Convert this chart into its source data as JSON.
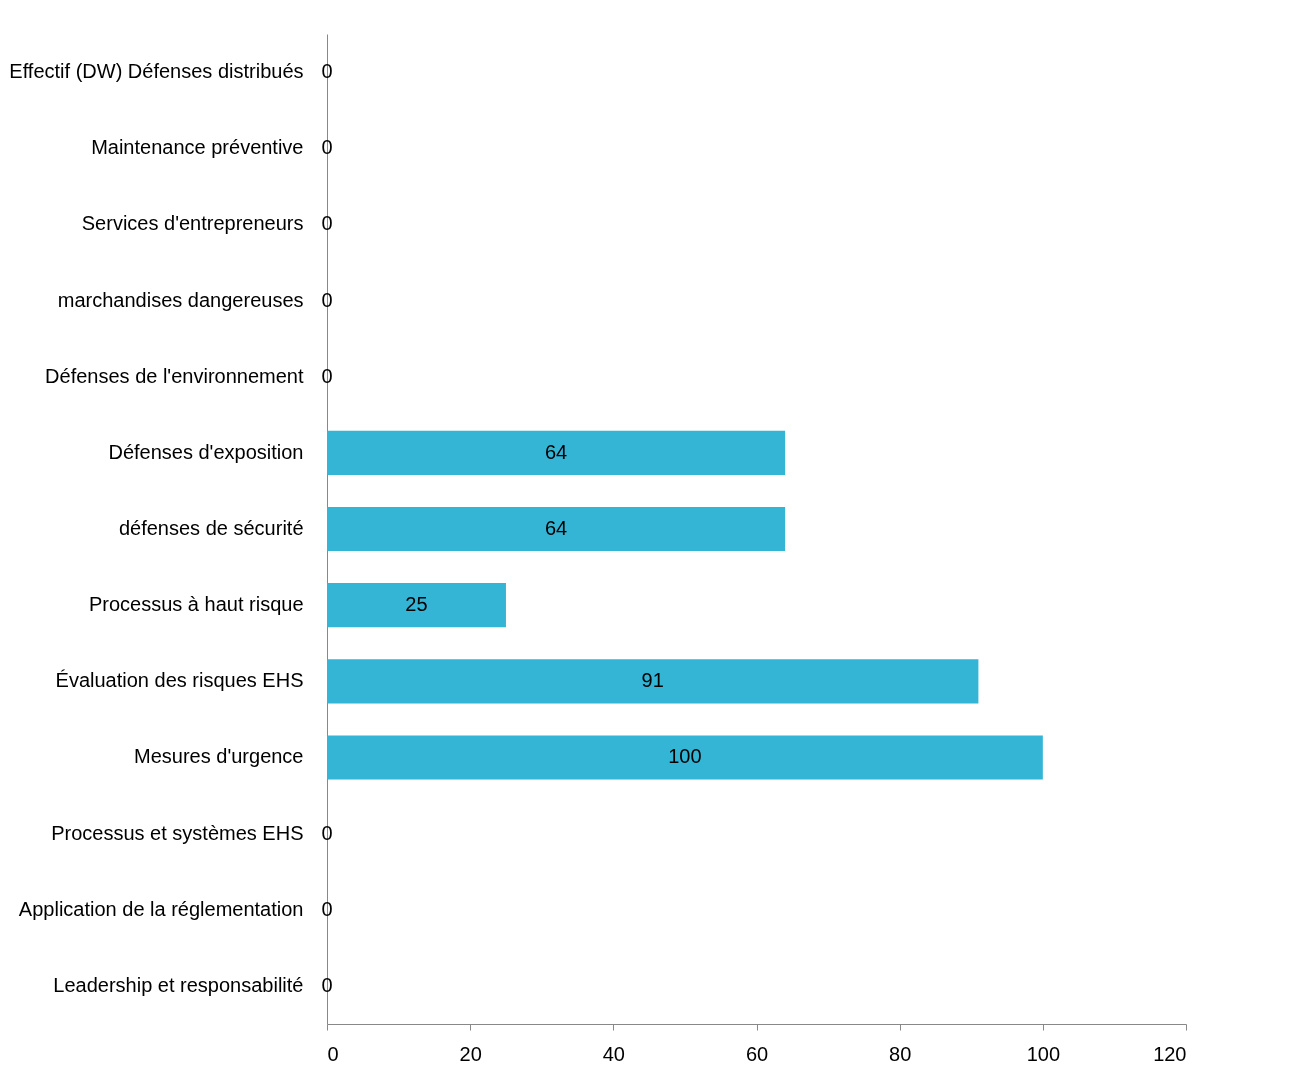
{
  "chart_data": {
    "type": "bar",
    "orientation": "horizontal",
    "categories": [
      "Effectif (DW) Défenses distribués",
      "Maintenance préventive",
      "Services d'entrepreneurs",
      "marchandises dangereuses",
      "Défenses de l'environnement",
      "Défenses d'exposition",
      "défenses de sécurité",
      "Processus à haut risque",
      "Évaluation des risques EHS",
      "Mesures d'urgence",
      "Processus et systèmes EHS",
      "Application de la réglementation",
      "Leadership et responsabilité"
    ],
    "values": [
      0,
      0,
      0,
      0,
      0,
      64,
      64,
      25,
      91,
      100,
      0,
      0,
      0
    ],
    "color": "#34b5d6",
    "xlim": [
      0,
      120
    ],
    "xticks": [
      0,
      20,
      40,
      60,
      80,
      100,
      120
    ],
    "data_labels": true,
    "grid": false
  }
}
